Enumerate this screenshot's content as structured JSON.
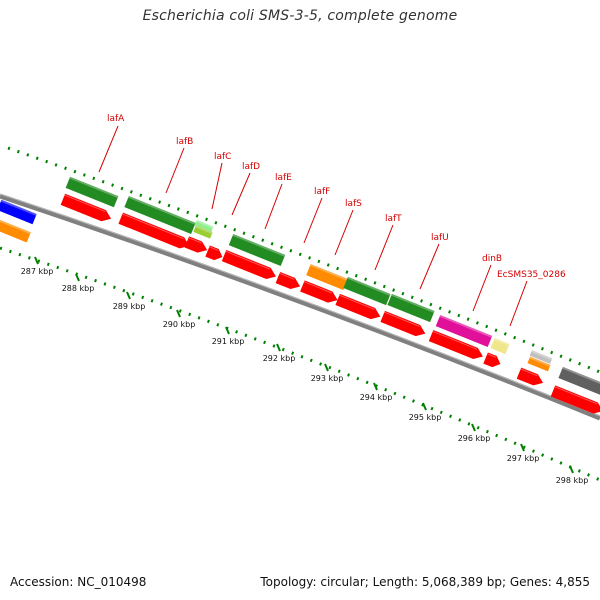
{
  "title": "Escherichia coli SMS-3-5, complete genome",
  "footer": {
    "accession": "Accession: NC_010498",
    "stats": "Topology: circular; Length: 5,068,389 bp; Genes: 4,855"
  },
  "colors": {
    "backbone": "#808080",
    "tick": "#008000",
    "cds_red": "#ff0000",
    "dark_green": "#228b22",
    "orange": "#ff8c00",
    "magenta": "#e0109a",
    "blue": "#0000ff",
    "khaki": "#f0e68c",
    "gray": "#606060",
    "light_green": "#90ee90",
    "yellow_green": "#9acd32",
    "label_red": "#d40000"
  },
  "scale": {
    "labels": [
      "287 kbp",
      "288 kbp",
      "289 kbp",
      "290 kbp",
      "291 kbp",
      "292 kbp",
      "293 kbp",
      "294 kbp",
      "295 kbp",
      "296 kbp",
      "297 kbp",
      "298 kbp"
    ]
  },
  "gene_labels": [
    "lafA",
    "lafB",
    "lafC",
    "lafD",
    "lafE",
    "lafF",
    "lafS",
    "lafT",
    "lafU",
    "dinB",
    "EcSMS35_0286"
  ]
}
